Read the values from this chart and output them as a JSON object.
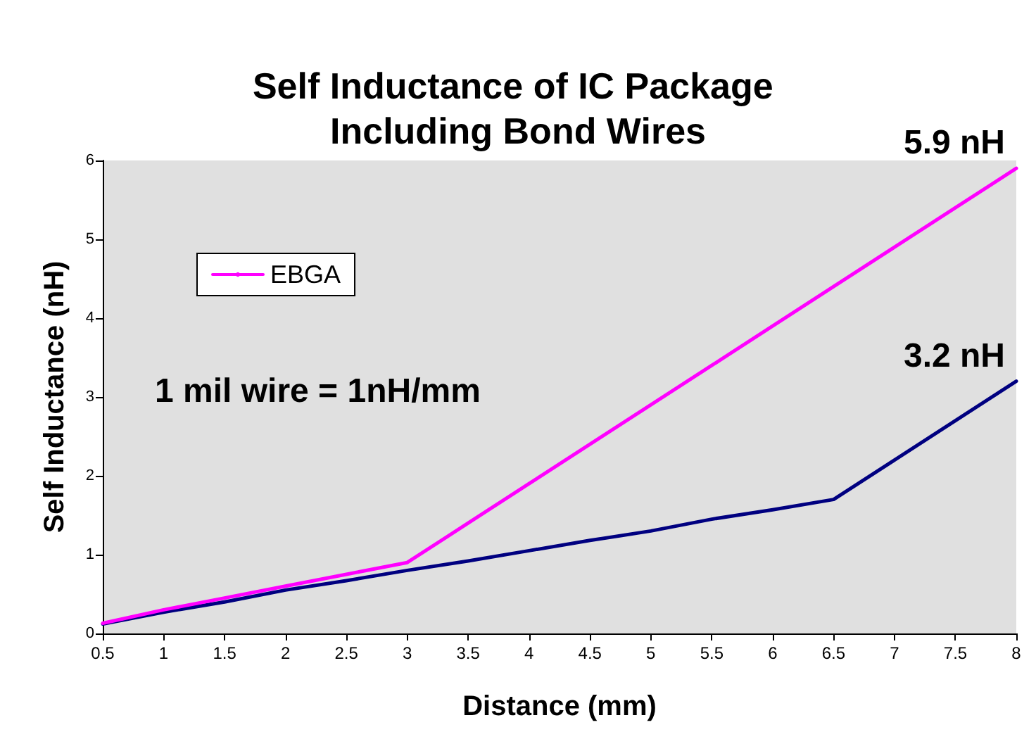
{
  "chart_data": {
    "type": "line",
    "title": "Self Inductance of IC Package Including Bond Wires",
    "xlabel": "Distance (mm)",
    "ylabel": "Self Inductance (nH)",
    "x": [
      0.5,
      1,
      1.5,
      2,
      2.5,
      3,
      3.5,
      4,
      4.5,
      5,
      5.5,
      6,
      6.5,
      7,
      7.5,
      8
    ],
    "series": [
      {
        "color": "#000080",
        "values": [
          0.12,
          0.27,
          0.4,
          0.55,
          0.67,
          0.8,
          0.92,
          1.05,
          1.18,
          1.3,
          1.45,
          1.57,
          1.7,
          2.2,
          2.7,
          3.2
        ]
      },
      {
        "name": "EBGA",
        "color": "#ff00ff",
        "values": [
          0.13,
          0.3,
          0.45,
          0.6,
          0.75,
          0.9,
          1.4,
          1.9,
          2.4,
          2.9,
          3.4,
          3.9,
          4.4,
          4.9,
          5.4,
          5.9
        ]
      }
    ],
    "xlim": [
      0.5,
      8
    ],
    "xticks": [
      0.5,
      1,
      1.5,
      2,
      2.5,
      3,
      3.5,
      4,
      4.5,
      5,
      5.5,
      6,
      6.5,
      7,
      7.5,
      8
    ],
    "ylim": [
      0,
      6
    ],
    "yticks": [
      0,
      1,
      2,
      3,
      4,
      5,
      6
    ],
    "grid": false,
    "legend": "top left",
    "marker": "none",
    "line_style": "solid",
    "annotations": [
      {
        "text": "5.9 nH",
        "x": 8,
        "y": 5.9
      },
      {
        "text": "3.2 nH",
        "x": 8,
        "y": 3.2
      },
      "1 mil wire = 1nH/mm"
    ]
  }
}
